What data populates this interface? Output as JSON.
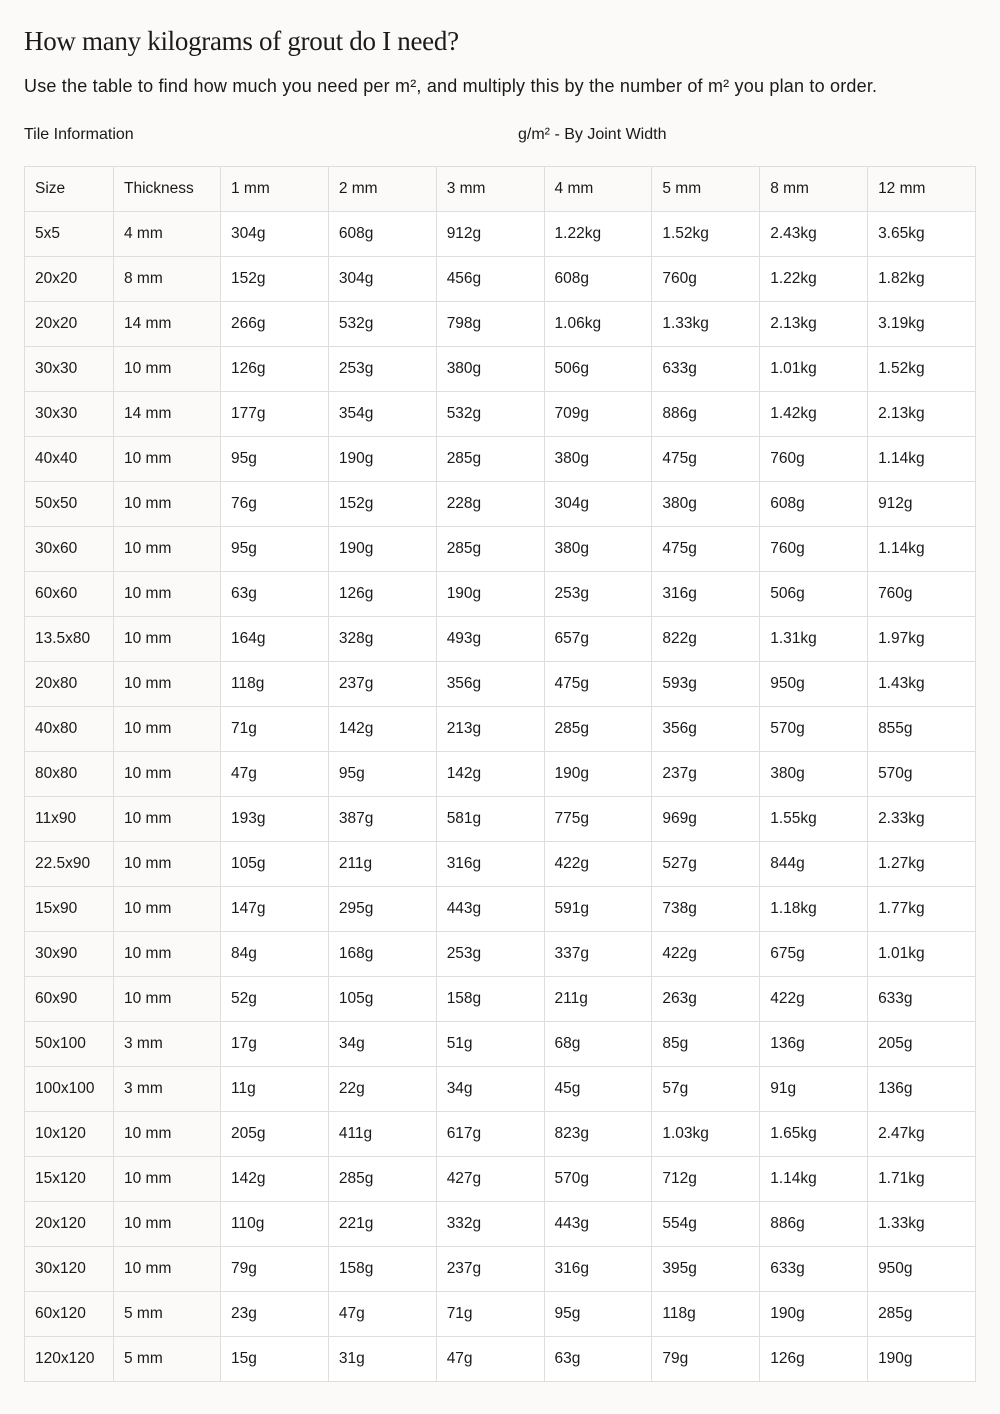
{
  "title": "How many kilograms of grout do I need?",
  "intro": "Use the table to find how much you need per m², and multiply this by the number of m² you plan to order.",
  "group_labels": {
    "tile_info": "Tile Information",
    "joint_width": "g/m² - By Joint Width"
  },
  "table": {
    "headers": [
      "Size",
      "Thickness",
      "1 mm",
      "2 mm",
      "3 mm",
      "4 mm",
      "5 mm",
      "8 mm",
      "12 mm"
    ],
    "rows": [
      [
        "5x5",
        "4 mm",
        "304g",
        "608g",
        "912g",
        "1.22kg",
        "1.52kg",
        "2.43kg",
        "3.65kg"
      ],
      [
        "20x20",
        "8 mm",
        "152g",
        "304g",
        "456g",
        "608g",
        "760g",
        "1.22kg",
        "1.82kg"
      ],
      [
        "20x20",
        "14 mm",
        "266g",
        "532g",
        "798g",
        "1.06kg",
        "1.33kg",
        "2.13kg",
        "3.19kg"
      ],
      [
        "30x30",
        "10 mm",
        "126g",
        "253g",
        "380g",
        "506g",
        "633g",
        "1.01kg",
        "1.52kg"
      ],
      [
        "30x30",
        "14 mm",
        "177g",
        "354g",
        "532g",
        "709g",
        "886g",
        "1.42kg",
        "2.13kg"
      ],
      [
        "40x40",
        "10 mm",
        "95g",
        "190g",
        "285g",
        "380g",
        "475g",
        "760g",
        "1.14kg"
      ],
      [
        "50x50",
        "10 mm",
        "76g",
        "152g",
        "228g",
        "304g",
        "380g",
        "608g",
        "912g"
      ],
      [
        "30x60",
        "10 mm",
        "95g",
        "190g",
        "285g",
        "380g",
        "475g",
        "760g",
        "1.14kg"
      ],
      [
        "60x60",
        "10 mm",
        "63g",
        "126g",
        "190g",
        "253g",
        "316g",
        "506g",
        "760g"
      ],
      [
        "13.5x80",
        "10 mm",
        "164g",
        "328g",
        "493g",
        "657g",
        "822g",
        "1.31kg",
        "1.97kg"
      ],
      [
        "20x80",
        "10 mm",
        "118g",
        "237g",
        "356g",
        "475g",
        "593g",
        "950g",
        "1.43kg"
      ],
      [
        "40x80",
        "10 mm",
        "71g",
        "142g",
        "213g",
        "285g",
        "356g",
        "570g",
        "855g"
      ],
      [
        "80x80",
        "10 mm",
        "47g",
        "95g",
        "142g",
        "190g",
        "237g",
        "380g",
        "570g"
      ],
      [
        "11x90",
        "10 mm",
        "193g",
        "387g",
        "581g",
        "775g",
        "969g",
        "1.55kg",
        "2.33kg"
      ],
      [
        "22.5x90",
        "10 mm",
        "105g",
        "211g",
        "316g",
        "422g",
        "527g",
        "844g",
        "1.27kg"
      ],
      [
        "15x90",
        "10 mm",
        "147g",
        "295g",
        "443g",
        "591g",
        "738g",
        "1.18kg",
        "1.77kg"
      ],
      [
        "30x90",
        "10 mm",
        "84g",
        "168g",
        "253g",
        "337g",
        "422g",
        "675g",
        "1.01kg"
      ],
      [
        "60x90",
        "10 mm",
        "52g",
        "105g",
        "158g",
        "211g",
        "263g",
        "422g",
        "633g"
      ],
      [
        "50x100",
        "3 mm",
        "17g",
        "34g",
        "51g",
        "68g",
        "85g",
        "136g",
        "205g"
      ],
      [
        "100x100",
        "3 mm",
        "11g",
        "22g",
        "34g",
        "45g",
        "57g",
        "91g",
        "136g"
      ],
      [
        "10x120",
        "10 mm",
        "205g",
        "411g",
        "617g",
        "823g",
        "1.03kg",
        "1.65kg",
        "2.47kg"
      ],
      [
        "15x120",
        "10 mm",
        "142g",
        "285g",
        "427g",
        "570g",
        "712g",
        "1.14kg",
        "1.71kg"
      ],
      [
        "20x120",
        "10 mm",
        "110g",
        "221g",
        "332g",
        "443g",
        "554g",
        "886g",
        "1.33kg"
      ],
      [
        "30x120",
        "10 mm",
        "79g",
        "158g",
        "237g",
        "316g",
        "395g",
        "633g",
        "950g"
      ],
      [
        "60x120",
        "5 mm",
        "23g",
        "47g",
        "71g",
        "95g",
        "118g",
        "190g",
        "285g"
      ],
      [
        "120x120",
        "5 mm",
        "15g",
        "31g",
        "47g",
        "63g",
        "79g",
        "126g",
        "190g"
      ]
    ]
  }
}
